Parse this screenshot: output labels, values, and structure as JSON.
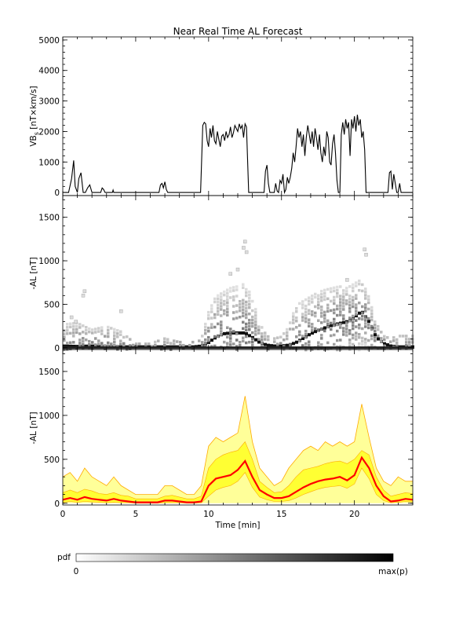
{
  "chart_data": [
    {
      "type": "line",
      "title": "Near Real Time AL Forecast",
      "ylabel": "VB",
      "ylabel_sub": "s",
      "ylabel_unit": " [nT×km/s]",
      "ylim": [
        -100,
        5100
      ],
      "yticks": [
        "0",
        "1000",
        "2000",
        "3000",
        "4000",
        "5000"
      ],
      "xlim": [
        0,
        24
      ],
      "series": [
        {
          "x": [
            0,
            0.4,
            0.6,
            0.75,
            0.85,
            1.0,
            1.1,
            1.25,
            1.4,
            1.55,
            1.7,
            1.85,
            2.0,
            2.6,
            2.7,
            2.8,
            2.9,
            3.4,
            3.45,
            3.5,
            6.6,
            6.7,
            6.8,
            6.9,
            7.0,
            7.1,
            7.2,
            9.45,
            9.6,
            9.7,
            9.8,
            9.9,
            10.0,
            10.1,
            10.2,
            10.3,
            10.4,
            10.5,
            10.6,
            10.7,
            10.8,
            10.9,
            11.0,
            11.1,
            11.2,
            11.3,
            11.4,
            11.5,
            11.6,
            11.7,
            11.8,
            11.9,
            12.0,
            12.1,
            12.2,
            12.3,
            12.4,
            12.5,
            12.6,
            12.75,
            13.8,
            13.9,
            14.0,
            14.1,
            14.2,
            14.5,
            14.6,
            14.7,
            14.8,
            14.9,
            15.0,
            15.1,
            15.2,
            15.3,
            15.4,
            15.5,
            15.6,
            15.7,
            15.8,
            15.9,
            16.0,
            16.1,
            16.2,
            16.3,
            16.4,
            16.5,
            16.6,
            16.7,
            16.8,
            16.9,
            17.0,
            17.1,
            17.2,
            17.3,
            17.4,
            17.5,
            17.6,
            17.7,
            17.8,
            17.9,
            18.0,
            18.1,
            18.2,
            18.3,
            18.4,
            18.5,
            18.6,
            18.7,
            18.8,
            18.9,
            19.0,
            19.1,
            19.2,
            19.3,
            19.4,
            19.5,
            19.6,
            19.7,
            19.8,
            19.9,
            20.0,
            20.1,
            20.2,
            20.3,
            20.4,
            20.5,
            20.6,
            20.7,
            20.8,
            22.3,
            22.4,
            22.5,
            22.6,
            22.7,
            22.9,
            23.0,
            23.1,
            23.2,
            24.0
          ],
          "y": [
            0,
            0,
            450,
            1050,
            200,
            0,
            450,
            650,
            0,
            0,
            150,
            250,
            0,
            0,
            150,
            100,
            0,
            0,
            80,
            0,
            0,
            250,
            300,
            150,
            350,
            100,
            0,
            0,
            2200,
            2300,
            2250,
            1700,
            1500,
            2100,
            1800,
            2200,
            1700,
            1600,
            2000,
            1750,
            1500,
            1850,
            1900,
            1700,
            2000,
            1800,
            1900,
            2150,
            1800,
            1950,
            2200,
            2100,
            2000,
            2250,
            2100,
            2200,
            1800,
            2250,
            2150,
            0,
            0,
            700,
            900,
            300,
            0,
            0,
            300,
            50,
            0,
            400,
            300,
            600,
            0,
            100,
            500,
            300,
            500,
            800,
            1300,
            1000,
            1500,
            2100,
            1800,
            2000,
            1500,
            1900,
            1200,
            1800,
            2200,
            1900,
            1600,
            2000,
            1500,
            2100,
            1800,
            1400,
            1900,
            1300,
            1000,
            1500,
            1200,
            2000,
            1800,
            1000,
            900,
            1600,
            1900,
            1300,
            400,
            0,
            0,
            1900,
            2300,
            1900,
            2400,
            2100,
            2300,
            1200,
            2400,
            2100,
            2500,
            2000,
            2550,
            2200,
            2400,
            1800,
            2000,
            1400,
            0,
            0,
            650,
            700,
            100,
            600,
            0,
            0,
            300,
            0,
            0
          ]
        }
      ]
    },
    {
      "type": "heatmap",
      "ylabel": "-AL [nT]",
      "ylim": [
        -20,
        1750
      ],
      "yticks": [
        "0",
        "500",
        "1000",
        "1500"
      ],
      "xlim": [
        0,
        24
      ],
      "colorbar_label": "pdf",
      "colorbar_min": "0",
      "colorbar_max": "max(p)",
      "ridge": {
        "x": [
          0,
          1,
          2,
          3,
          4,
          5,
          6,
          7,
          8,
          9,
          9.5,
          10,
          10.5,
          11,
          11.5,
          12,
          12.5,
          13,
          13.5,
          14,
          14.5,
          15,
          15.5,
          16,
          16.5,
          17,
          17.5,
          18,
          18.5,
          19,
          19.5,
          20,
          20.5,
          21,
          21.5,
          22,
          22.5,
          23,
          24
        ],
        "y": [
          20,
          15,
          20,
          10,
          10,
          10,
          10,
          10,
          10,
          10,
          20,
          60,
          120,
          160,
          170,
          170,
          170,
          120,
          60,
          30,
          20,
          20,
          30,
          60,
          110,
          160,
          200,
          230,
          260,
          280,
          300,
          350,
          420,
          300,
          120,
          50,
          20,
          10,
          10
        ]
      },
      "spread": {
        "x": [
          0,
          1,
          2,
          3,
          4,
          5,
          6,
          7,
          8,
          9,
          9.5,
          10,
          10.5,
          11,
          11.5,
          12,
          12.5,
          13,
          13.5,
          14,
          14.5,
          15,
          15.5,
          16,
          16.5,
          17,
          17.5,
          18,
          18.5,
          19,
          19.5,
          20,
          20.5,
          21,
          21.5,
          22,
          22.5,
          23,
          24
        ],
        "y": [
          280,
          300,
          220,
          260,
          200,
          60,
          60,
          120,
          80,
          80,
          100,
          420,
          600,
          650,
          700,
          720,
          750,
          600,
          300,
          150,
          120,
          140,
          250,
          500,
          550,
          600,
          650,
          680,
          700,
          720,
          700,
          750,
          800,
          600,
          300,
          150,
          120,
          150,
          150
        ]
      },
      "outliers": [
        {
          "x": 12.5,
          "y": 1220
        },
        {
          "x": 12.4,
          "y": 1150
        },
        {
          "x": 12.6,
          "y": 1100
        },
        {
          "x": 20.7,
          "y": 1130
        },
        {
          "x": 20.8,
          "y": 1070
        },
        {
          "x": 1.5,
          "y": 650
        },
        {
          "x": 1.4,
          "y": 600
        },
        {
          "x": 4.0,
          "y": 420
        },
        {
          "x": 0.6,
          "y": 350
        },
        {
          "x": 0.9,
          "y": 300
        },
        {
          "x": 11.5,
          "y": 850
        },
        {
          "x": 12.0,
          "y": 900
        },
        {
          "x": 19.5,
          "y": 780
        }
      ]
    },
    {
      "type": "area",
      "ylabel": "-AL [nT]",
      "xlabel": "Time [min]",
      "ylim": [
        -20,
        1750
      ],
      "yticks": [
        "0",
        "500",
        "1000",
        "1500"
      ],
      "xlim": [
        0,
        24
      ],
      "xticks": [
        "0",
        "5",
        "10",
        "15",
        "20"
      ],
      "colors": {
        "median": "#ff0000",
        "inner": "#ffff33",
        "outer": "#ffff99",
        "edge": "#ffaa00"
      },
      "x": [
        0,
        0.5,
        1,
        1.5,
        2,
        2.5,
        3,
        3.5,
        4,
        4.5,
        5,
        5.5,
        6,
        6.5,
        7,
        7.5,
        8,
        8.5,
        9,
        9.5,
        10,
        10.5,
        11,
        11.5,
        12,
        12.5,
        13,
        13.5,
        14,
        14.5,
        15,
        15.5,
        16,
        16.5,
        17,
        17.5,
        18,
        18.5,
        19,
        19.5,
        20,
        20.5,
        21,
        21.5,
        22,
        22.5,
        23,
        23.5,
        24
      ],
      "median": [
        40,
        60,
        40,
        70,
        50,
        40,
        30,
        50,
        30,
        20,
        10,
        10,
        10,
        10,
        30,
        30,
        20,
        10,
        10,
        20,
        200,
        280,
        300,
        320,
        380,
        480,
        300,
        150,
        100,
        60,
        60,
        80,
        130,
        180,
        220,
        250,
        270,
        280,
        300,
        260,
        320,
        520,
        400,
        200,
        80,
        20,
        30,
        50,
        40
      ],
      "inner_upper": [
        120,
        150,
        120,
        160,
        140,
        110,
        100,
        120,
        90,
        80,
        50,
        50,
        50,
        50,
        80,
        90,
        70,
        50,
        50,
        80,
        400,
        500,
        550,
        580,
        600,
        700,
        500,
        250,
        180,
        120,
        130,
        200,
        300,
        380,
        400,
        420,
        450,
        470,
        480,
        450,
        500,
        600,
        550,
        300,
        150,
        80,
        100,
        120,
        110
      ],
      "inner_lower": [
        10,
        20,
        10,
        20,
        15,
        10,
        5,
        10,
        5,
        5,
        0,
        0,
        0,
        0,
        5,
        5,
        5,
        0,
        0,
        5,
        80,
        150,
        180,
        200,
        250,
        350,
        180,
        70,
        40,
        20,
        20,
        30,
        60,
        100,
        130,
        160,
        180,
        190,
        200,
        170,
        220,
        400,
        280,
        100,
        30,
        5,
        10,
        20,
        15
      ],
      "outer_upper": [
        300,
        350,
        250,
        400,
        300,
        250,
        200,
        300,
        200,
        150,
        100,
        100,
        100,
        100,
        200,
        200,
        150,
        100,
        100,
        200,
        650,
        750,
        700,
        750,
        800,
        1220,
        700,
        400,
        300,
        200,
        250,
        400,
        500,
        600,
        650,
        600,
        700,
        650,
        700,
        650,
        700,
        1130,
        750,
        400,
        250,
        200,
        300,
        250,
        250
      ]
    }
  ]
}
